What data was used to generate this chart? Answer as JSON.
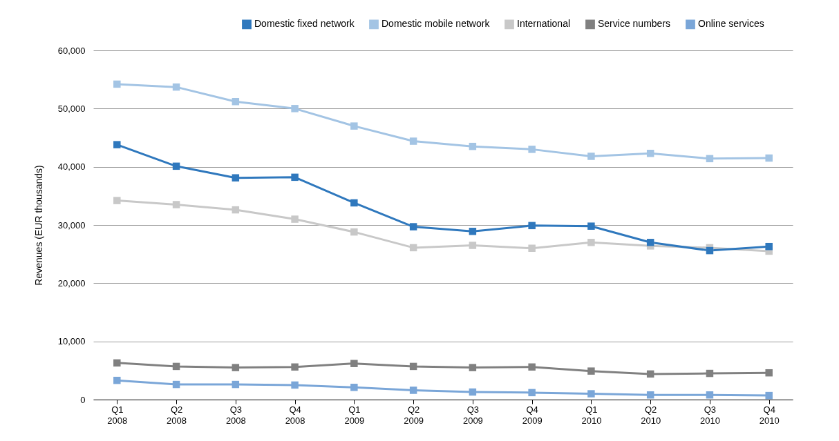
{
  "chart_data": {
    "type": "line",
    "ylabel": "Revenues (EUR thousands)",
    "categories": [
      "Q1 2008",
      "Q2 2008",
      "Q3 2008",
      "Q4 2008",
      "Q1 2009",
      "Q2 2009",
      "Q3 2009",
      "Q4 2009",
      "Q1 2010",
      "Q2 2010",
      "Q3 2010",
      "Q4 2010"
    ],
    "series": [
      {
        "name": "Domestic fixed network",
        "color": "#2f78bd",
        "values": [
          43800,
          40100,
          38100,
          38200,
          33800,
          29700,
          28900,
          29900,
          29800,
          27000,
          25600,
          26300
        ]
      },
      {
        "name": "Domestic mobile network",
        "color": "#a3c4e4",
        "values": [
          54200,
          53700,
          51200,
          50000,
          47000,
          44400,
          43500,
          43000,
          41800,
          42300,
          41400,
          41500
        ]
      },
      {
        "name": "International",
        "color": "#c8c8c8",
        "values": [
          34200,
          33500,
          32600,
          31000,
          28800,
          26100,
          26500,
          26000,
          27000,
          26400,
          26100,
          25500
        ]
      },
      {
        "name": "Service numbers",
        "color": "#808080",
        "values": [
          6300,
          5700,
          5500,
          5600,
          6200,
          5700,
          5500,
          5600,
          4900,
          4400,
          4500,
          4600
        ]
      },
      {
        "name": "Online services",
        "color": "#7aa6d8",
        "values": [
          3300,
          2600,
          2600,
          2500,
          2100,
          1600,
          1300,
          1200,
          1000,
          800,
          800,
          700
        ]
      }
    ],
    "ylim": [
      0,
      60000
    ],
    "yticks": [
      0,
      {
        "value": 10000,
        "label": "10,000"
      },
      {
        "value": 20000,
        "label": "20,000"
      },
      {
        "value": 30000,
        "label": "30,000"
      },
      {
        "value": 40000,
        "label": "40,000"
      },
      {
        "value": 50000,
        "label": "50,000"
      },
      {
        "value": 60000,
        "label": "60,000"
      }
    ],
    "grid": "y",
    "legend": "top right",
    "marker": "square",
    "line_style": "solid"
  }
}
